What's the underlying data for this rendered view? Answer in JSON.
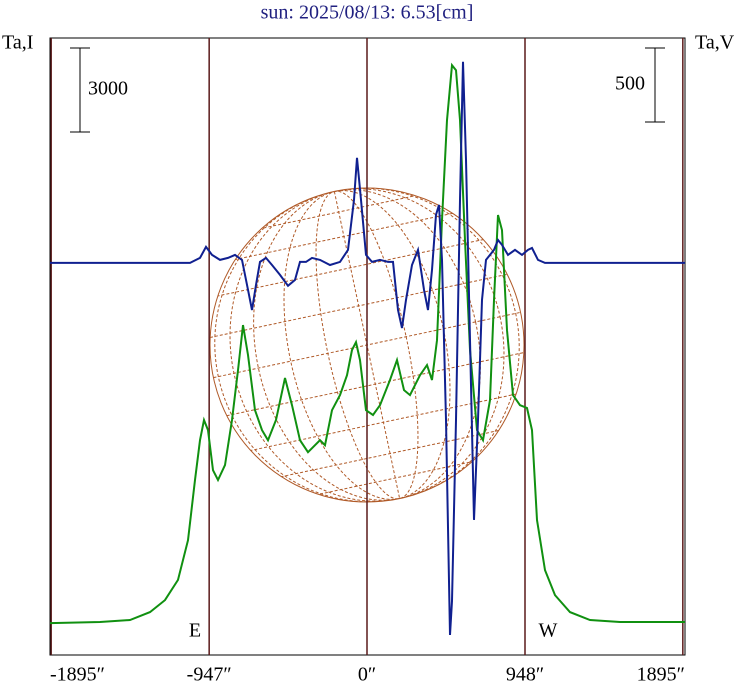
{
  "chart_data": {
    "type": "line",
    "title": "sun: 2025/08/13: 6.53[cm]",
    "ylabel": "Ta,I",
    "y2label": "Ta,V",
    "y_scale_bar": 3000,
    "y2_scale_bar": 500,
    "annotations": [
      "E",
      "W"
    ],
    "xlim": [
      -1902,
      1908
    ],
    "ylim": [
      -1140,
      20890
    ],
    "y2lim": [
      -2650,
      1520
    ],
    "xticks": [
      {
        "value": -1895,
        "label": "-1895″"
      },
      {
        "value": -947,
        "label": "-947″"
      },
      {
        "value": 0,
        "label": "0″"
      },
      {
        "value": 948,
        "label": "948″"
      },
      {
        "value": 1895,
        "label": "1895″"
      }
    ],
    "series": [
      {
        "color": "#109010",
        "axis": "y",
        "x": [
          -1902,
          -1602,
          -1422,
          -1302,
          -1212,
          -1134,
          -1074,
          -1032,
          -1002,
          -978,
          -954,
          -924,
          -894,
          -852,
          -810,
          -774,
          -744,
          -714,
          -672,
          -630,
          -594,
          -546,
          -492,
          -450,
          -402,
          -354,
          -312,
          -282,
          -252,
          -210,
          -162,
          -120,
          -90,
          -66,
          -42,
          -6,
          36,
          78,
          138,
          180,
          222,
          258,
          318,
          360,
          390,
          420,
          450,
          480,
          510,
          534,
          558,
          588,
          618,
          660,
          696,
          738,
          762,
          786,
          810,
          840,
          876,
          918,
          960,
          990,
          1020,
          1068,
          1128,
          1218,
          1338,
          1518,
          1908
        ],
        "values": [
          0,
          40,
          110,
          390,
          820,
          1540,
          2960,
          5110,
          6530,
          7250,
          6890,
          5460,
          5110,
          5640,
          7250,
          9030,
          10640,
          9570,
          7600,
          6890,
          6530,
          7250,
          8750,
          7780,
          6530,
          6100,
          6350,
          6530,
          6350,
          7600,
          8140,
          8850,
          9750,
          10030,
          9390,
          7600,
          7430,
          7780,
          8680,
          9390,
          8320,
          8140,
          8850,
          9210,
          8680,
          10100,
          14390,
          17960,
          19920,
          19740,
          17960,
          13670,
          9750,
          6890,
          6530,
          7960,
          11530,
          14570,
          14030,
          10460,
          8140,
          7780,
          7680,
          6890,
          3680,
          1890,
          1000,
          390,
          110,
          40,
          40
        ]
      },
      {
        "color": "#102090",
        "axis": "y2",
        "x": [
          -1902,
          -1062,
          -1002,
          -966,
          -930,
          -882,
          -834,
          -792,
          -750,
          -714,
          -690,
          -666,
          -642,
          -606,
          -570,
          -522,
          -474,
          -432,
          -402,
          -366,
          -330,
          -282,
          -222,
          -162,
          -114,
          -78,
          -60,
          -36,
          -6,
          30,
          78,
          126,
          156,
          186,
          210,
          234,
          270,
          306,
          342,
          366,
          390,
          414,
          432,
          450,
          474,
          498,
          510,
          534,
          558,
          576,
          594,
          618,
          642,
          666,
          690,
          714,
          738,
          762,
          786,
          810,
          846,
          888,
          930,
          966,
          990,
          1026,
          1068,
          1908
        ],
        "values": [
          0,
          0,
          34,
          108,
          54,
          20,
          34,
          54,
          20,
          -182,
          -318,
          -149,
          7,
          34,
          -14,
          -81,
          -155,
          -115,
          7,
          7,
          34,
          20,
          -14,
          7,
          88,
          426,
          710,
          426,
          54,
          7,
          20,
          7,
          7,
          -318,
          -440,
          -250,
          -14,
          88,
          -182,
          -318,
          -47,
          325,
          392,
          20,
          -1062,
          -2515,
          -2285,
          -1062,
          426,
          1359,
          697,
          -521,
          -1737,
          -1062,
          -250,
          20,
          54,
          88,
          155,
          122,
          54,
          88,
          54,
          88,
          101,
          20,
          0,
          0
        ]
      }
    ]
  }
}
